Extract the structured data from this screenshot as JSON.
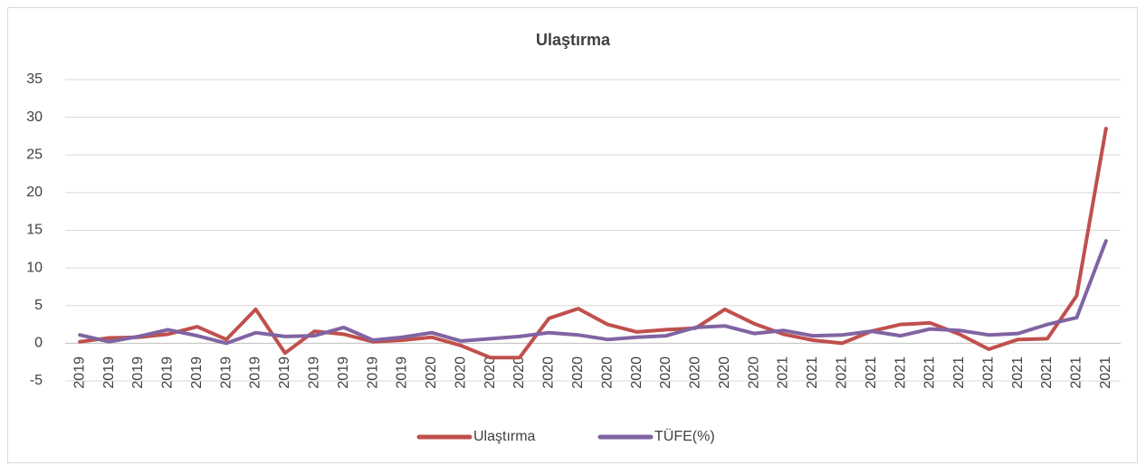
{
  "chart_data": {
    "type": "line",
    "title": "Ulaştırma",
    "categories": [
      "2019",
      "2019",
      "2019",
      "2019",
      "2019",
      "2019",
      "2019",
      "2019",
      "2019",
      "2019",
      "2019",
      "2019",
      "2020",
      "2020",
      "2020",
      "2020",
      "2020",
      "2020",
      "2020",
      "2020",
      "2020",
      "2020",
      "2020",
      "2020",
      "2021",
      "2021",
      "2021",
      "2021",
      "2021",
      "2021",
      "2021",
      "2021",
      "2021",
      "2021",
      "2021",
      "2021"
    ],
    "series": [
      {
        "name": "Ulaştırma",
        "color": "#c0504d",
        "values": [
          0.2,
          0.7,
          0.8,
          1.2,
          2.2,
          0.5,
          4.5,
          -1.3,
          1.6,
          1.2,
          0.2,
          0.4,
          0.8,
          -0.3,
          -1.9,
          -1.9,
          3.3,
          4.6,
          2.5,
          1.5,
          1.8,
          2.0,
          4.5,
          2.6,
          1.2,
          0.4,
          0.0,
          1.6,
          2.5,
          2.7,
          1.2,
          -0.8,
          0.5,
          0.6,
          6.3,
          28.5
        ]
      },
      {
        "name": "TÜFE(%)",
        "color": "#8064a2",
        "values": [
          1.1,
          0.2,
          0.9,
          1.8,
          1.0,
          0.0,
          1.4,
          0.9,
          1.0,
          2.1,
          0.4,
          0.8,
          1.4,
          0.3,
          0.6,
          0.9,
          1.4,
          1.1,
          0.5,
          0.8,
          1.0,
          2.1,
          2.3,
          1.3,
          1.7,
          1.0,
          1.1,
          1.6,
          1.0,
          1.9,
          1.7,
          1.1,
          1.3,
          2.5,
          3.4,
          13.6
        ]
      }
    ],
    "ylim": [
      -5,
      35
    ],
    "yticks": [
      -5,
      0,
      5,
      10,
      15,
      20,
      25,
      30,
      35
    ],
    "grid": true,
    "legend": "bottom"
  }
}
